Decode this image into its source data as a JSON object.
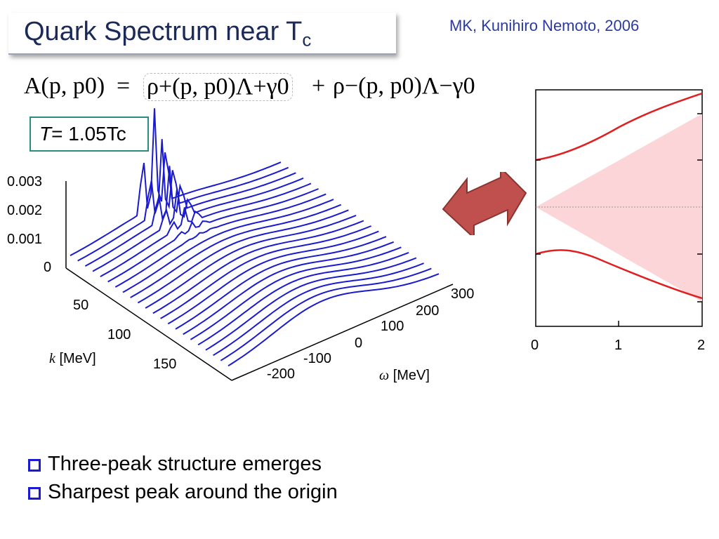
{
  "slide": {
    "title": "Quark Spectrum near T",
    "title_sub": "c",
    "credit": "MK, Kunihiro Nemoto, 2006",
    "temperature_prefix": "T",
    "temperature_value": "= 1.05Tc",
    "bullets": [
      "Three-peak structure emerges",
      "Sharpest peak around the origin"
    ]
  },
  "formula": {
    "lhs": "A(p, p0)",
    "eq": "=",
    "term1": "ρ+(p, p0)Λ+γ0",
    "plus": "+",
    "term2": "ρ−(p, p0)Λ−γ0"
  },
  "chart_data": [
    {
      "type": "surface-waterfall",
      "colors": {
        "line": "#1a1ad0"
      },
      "z_ticks": [
        "0",
        "0.001",
        "0.002",
        "0.003"
      ],
      "k_ticks": [
        "50",
        "100",
        "150"
      ],
      "omega_ticks": [
        "-200",
        "-100",
        "0",
        "100",
        "200",
        "300"
      ],
      "k_label": "k",
      "k_unit": "[MeV]",
      "omega_label": "ω",
      "omega_unit": "[MeV]"
    },
    {
      "type": "line",
      "x_ticks": [
        "0",
        "1",
        "2"
      ],
      "xlim": [
        0,
        2
      ],
      "colors": {
        "line": "#e02020",
        "fill": "#fbd5d8"
      }
    }
  ]
}
